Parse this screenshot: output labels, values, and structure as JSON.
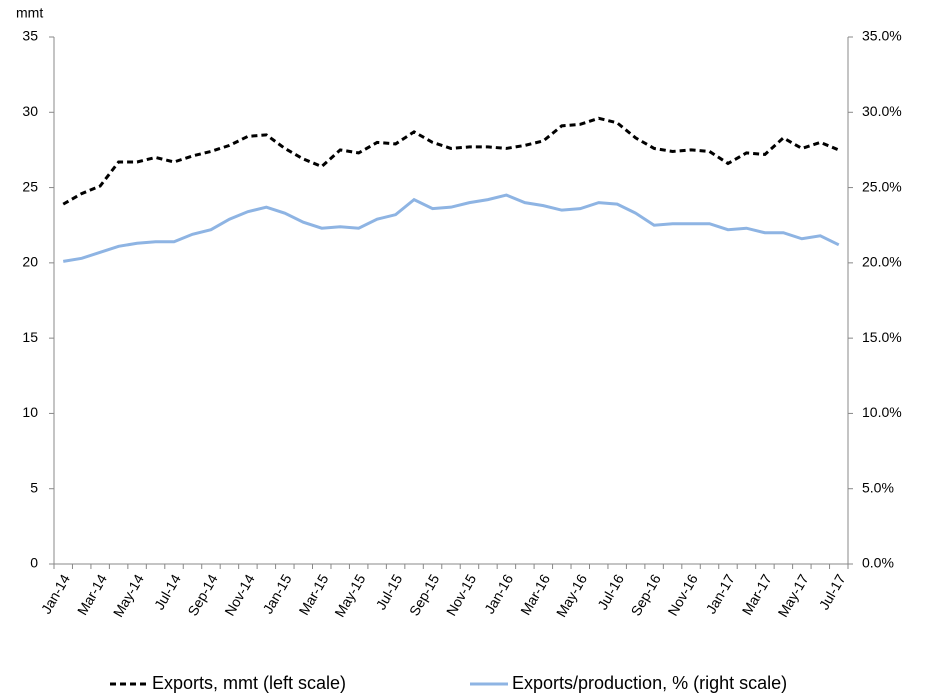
{
  "chart_data": {
    "type": "line",
    "y_axis_label": "mmt",
    "categories": [
      "Jan-14",
      null,
      "Mar-14",
      null,
      "May-14",
      null,
      "Jul-14",
      null,
      "Sep-14",
      null,
      "Nov-14",
      null,
      "Jan-15",
      null,
      "Mar-15",
      null,
      "May-15",
      null,
      "Jul-15",
      null,
      "Sep-15",
      null,
      "Nov-15",
      null,
      "Jan-16",
      null,
      "Mar-16",
      null,
      "May-16",
      null,
      "Jul-16",
      null,
      "Sep-16",
      null,
      "Nov-16",
      null,
      "Jan-17",
      null,
      "Mar-17",
      null,
      "May-17",
      null,
      "Jul-17"
    ],
    "series": [
      {
        "name": "Exports, mmt (left scale)",
        "color": "#000000",
        "dashed": true,
        "values": [
          23.9,
          24.6,
          25.1,
          26.7,
          26.7,
          27.0,
          26.7,
          27.1,
          27.4,
          27.8,
          28.4,
          28.5,
          27.6,
          26.9,
          26.4,
          27.5,
          27.3,
          28.0,
          27.9,
          28.7,
          28.0,
          27.6,
          27.7,
          27.7,
          27.6,
          27.8,
          28.1,
          29.1,
          29.2,
          29.6,
          29.3,
          28.3,
          27.6,
          27.4,
          27.5,
          27.4,
          26.6,
          27.3,
          27.2,
          28.3,
          27.6,
          28.0,
          27.5
        ]
      },
      {
        "name": "Exports/production, % (right scale)",
        "color": "#8eb4e3",
        "dashed": false,
        "axis": "y2",
        "values": [
          20.1,
          20.3,
          20.7,
          21.1,
          21.3,
          21.4,
          21.4,
          21.9,
          22.2,
          22.9,
          23.4,
          23.7,
          23.3,
          22.7,
          22.3,
          22.4,
          22.3,
          22.9,
          23.2,
          24.2,
          23.6,
          23.7,
          24.0,
          24.2,
          24.5,
          24.0,
          23.8,
          23.5,
          23.6,
          24.0,
          23.9,
          23.3,
          22.5,
          22.6,
          22.6,
          22.6,
          22.2,
          22.3,
          22.0,
          22.0,
          21.6,
          21.8,
          21.2
        ]
      }
    ],
    "ylim": [
      0,
      35
    ],
    "yticks": [
      0,
      5,
      10,
      15,
      20,
      25,
      30,
      35
    ],
    "y2lim": [
      0,
      35
    ],
    "y2ticks": [
      {
        "value": 0,
        "label": "0.0%"
      },
      {
        "value": 5,
        "label": "5.0%"
      },
      {
        "value": 10,
        "label": "10.0%"
      },
      {
        "value": 15,
        "label": "15.0%"
      },
      {
        "value": 20,
        "label": "20.0%"
      },
      {
        "value": 25,
        "label": "25.0%"
      },
      {
        "value": 30,
        "label": "30.0%"
      },
      {
        "value": 35,
        "label": "35.0%"
      }
    ],
    "grid": false,
    "legend": "bottom"
  }
}
